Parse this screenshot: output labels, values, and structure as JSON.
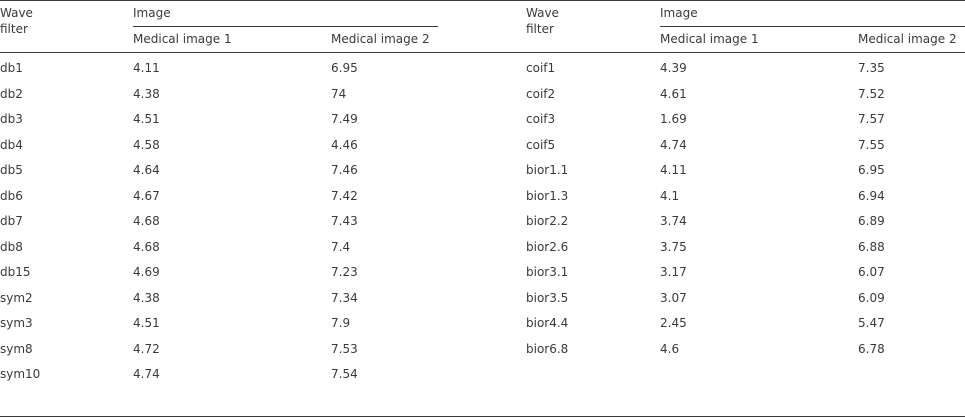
{
  "headers": {
    "left_wave": [
      "Wave",
      "filter"
    ],
    "left_image": "Image",
    "left_col1": "Medical image 1",
    "left_col2": "Medical image 2",
    "right_wave": [
      "Wave",
      "filter"
    ],
    "right_image": "Image",
    "right_col1": "Medical image 1",
    "right_col2": "Medical image 2"
  },
  "left_rows": [
    [
      "db1",
      "4.11",
      "6.95"
    ],
    [
      "db2",
      "4.38",
      "74"
    ],
    [
      "db3",
      "4.51",
      "7.49"
    ],
    [
      "db4",
      "4.58",
      "4.46"
    ],
    [
      "db5",
      "4.64",
      "7.46"
    ],
    [
      "db6",
      "4.67",
      "7.42"
    ],
    [
      "db7",
      "4.68",
      "7.43"
    ],
    [
      "db8",
      "4.68",
      "7.4"
    ],
    [
      "db15",
      "4.69",
      "7.23"
    ],
    [
      "sym2",
      "4.38",
      "7.34"
    ],
    [
      "sym3",
      "4.51",
      "7.9"
    ],
    [
      "sym8",
      "4.72",
      "7.53"
    ],
    [
      "sym10",
      "4.74",
      "7.54"
    ]
  ],
  "right_rows": [
    [
      "coif1",
      "4.39",
      "7.35"
    ],
    [
      "coif2",
      "4.61",
      "7.52"
    ],
    [
      "coif3",
      "1.69",
      "7.57"
    ],
    [
      "coif5",
      "4.74",
      "7.55"
    ],
    [
      "bior1.1",
      "4.11",
      "6.95"
    ],
    [
      "bior1.3",
      "4.1",
      "6.94"
    ],
    [
      "bior2.2",
      "3.74",
      "6.89"
    ],
    [
      "bior2.6",
      "3.75",
      "6.88"
    ],
    [
      "bior3.1",
      "3.17",
      "6.07"
    ],
    [
      "bior3.5",
      "3.07",
      "6.09"
    ],
    [
      "bior4.4",
      "2.45",
      "5.47"
    ],
    [
      "bior6.8",
      "4.6",
      "6.78"
    ]
  ]
}
